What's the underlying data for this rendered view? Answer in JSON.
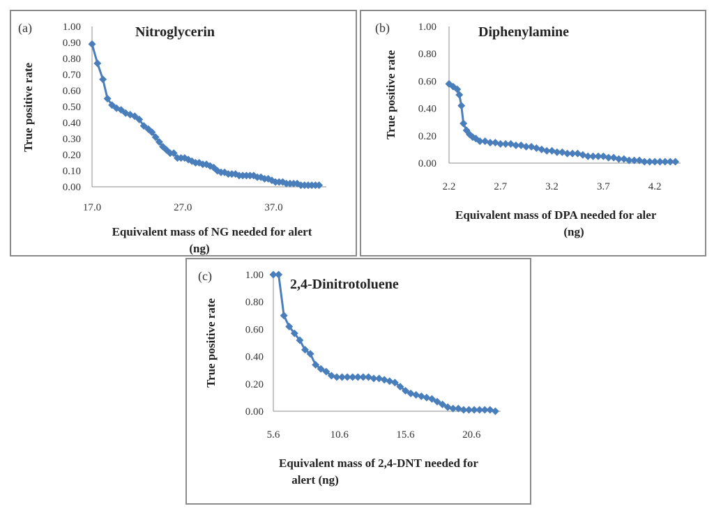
{
  "chart_data": [
    {
      "type": "line",
      "panel_label": "(a)",
      "title": "Nitroglycerin",
      "xlabel_line1": "Equivalent mass of NG needed for alert",
      "xlabel_line2": "(ng)",
      "ylabel": "True positive rate",
      "xlim": [
        17,
        42.8
      ],
      "ylim": [
        0,
        1
      ],
      "xticks": [
        "17.0",
        "27.0",
        "37.0"
      ],
      "yticks": [
        "0.00",
        "0.10",
        "0.20",
        "0.30",
        "0.40",
        "0.50",
        "0.60",
        "0.70",
        "0.80",
        "0.90",
        "1.00"
      ],
      "color": "#4a7ebb",
      "series": [
        {
          "name": "Nitroglycerin",
          "x": [
            17.0,
            17.6,
            18.2,
            18.7,
            19.2,
            19.7,
            20.2,
            20.7,
            21.2,
            21.7,
            22.2,
            22.7,
            23.2,
            23.6,
            24.0,
            24.4,
            24.8,
            25.2,
            25.6,
            26.0,
            26.4,
            26.8,
            27.2,
            27.6,
            28.0,
            28.4,
            28.8,
            29.2,
            29.6,
            30.0,
            30.4,
            30.8,
            31.2,
            31.6,
            32.0,
            32.4,
            32.8,
            33.2,
            33.6,
            34.0,
            34.4,
            34.8,
            35.2,
            35.6,
            36.0,
            36.4,
            36.8,
            37.2,
            37.6,
            38.0,
            38.4,
            38.8,
            39.2,
            39.6,
            40.0,
            40.4,
            40.8,
            41.2,
            41.6,
            42.0
          ],
          "y": [
            0.89,
            0.77,
            0.67,
            0.55,
            0.51,
            0.49,
            0.48,
            0.46,
            0.45,
            0.44,
            0.42,
            0.38,
            0.36,
            0.34,
            0.31,
            0.28,
            0.25,
            0.23,
            0.21,
            0.21,
            0.18,
            0.18,
            0.18,
            0.17,
            0.16,
            0.15,
            0.15,
            0.14,
            0.14,
            0.13,
            0.12,
            0.1,
            0.09,
            0.09,
            0.08,
            0.08,
            0.08,
            0.07,
            0.07,
            0.07,
            0.07,
            0.07,
            0.06,
            0.06,
            0.05,
            0.05,
            0.04,
            0.03,
            0.03,
            0.03,
            0.02,
            0.02,
            0.02,
            0.02,
            0.01,
            0.01,
            0.01,
            0.01,
            0.01,
            0.01
          ]
        }
      ]
    },
    {
      "type": "line",
      "panel_label": "(b)",
      "title": "Diphenylamine",
      "xlabel_line1": "Equivalent mass of DPA needed for aler",
      "xlabel_line2": "(ng)",
      "ylabel": "True positive rate",
      "xlim": [
        2.2,
        4.45
      ],
      "ylim": [
        0,
        1
      ],
      "xticks": [
        "2.2",
        "2.7",
        "3.2",
        "3.7",
        "4.2"
      ],
      "yticks": [
        "0.00",
        "0.20",
        "0.40",
        "0.60",
        "0.80",
        "1.00"
      ],
      "color": "#4a7ebb",
      "series": [
        {
          "name": "Diphenylamine",
          "x": [
            2.2,
            2.24,
            2.28,
            2.3,
            2.32,
            2.34,
            2.37,
            2.4,
            2.43,
            2.46,
            2.5,
            2.55,
            2.6,
            2.65,
            2.7,
            2.75,
            2.8,
            2.85,
            2.9,
            2.95,
            3.0,
            3.05,
            3.1,
            3.15,
            3.2,
            3.25,
            3.3,
            3.35,
            3.4,
            3.45,
            3.5,
            3.55,
            3.6,
            3.65,
            3.7,
            3.75,
            3.8,
            3.85,
            3.9,
            3.95,
            4.0,
            4.05,
            4.1,
            4.15,
            4.2,
            4.25,
            4.3,
            4.35,
            4.4
          ],
          "y": [
            0.58,
            0.56,
            0.54,
            0.5,
            0.42,
            0.29,
            0.24,
            0.21,
            0.19,
            0.18,
            0.16,
            0.16,
            0.15,
            0.15,
            0.14,
            0.14,
            0.14,
            0.13,
            0.13,
            0.12,
            0.12,
            0.11,
            0.1,
            0.09,
            0.09,
            0.08,
            0.08,
            0.07,
            0.07,
            0.07,
            0.06,
            0.05,
            0.05,
            0.05,
            0.05,
            0.04,
            0.04,
            0.03,
            0.03,
            0.02,
            0.02,
            0.02,
            0.01,
            0.01,
            0.01,
            0.01,
            0.01,
            0.01,
            0.01
          ]
        }
      ]
    },
    {
      "type": "line",
      "panel_label": "(c)",
      "title": "2,4-Dinitrotoluene",
      "xlabel_line1": "Equivalent mass of 2,4-DNT needed for",
      "xlabel_line2": "alert (ng)",
      "ylabel": "True positive rate",
      "xlim": [
        5.6,
        22.8
      ],
      "ylim": [
        0,
        1
      ],
      "xticks": [
        "5.6",
        "10.6",
        "15.6",
        "20.6"
      ],
      "yticks": [
        "0.00",
        "0.20",
        "0.40",
        "0.60",
        "0.80",
        "1.00"
      ],
      "color": "#4a7ebb",
      "series": [
        {
          "name": "2,4-Dinitrotoluene",
          "x": [
            5.6,
            6.0,
            6.4,
            6.8,
            7.2,
            7.6,
            8.0,
            8.4,
            8.8,
            9.2,
            9.6,
            10.0,
            10.4,
            10.8,
            11.2,
            11.6,
            12.0,
            12.4,
            12.8,
            13.2,
            13.6,
            14.0,
            14.4,
            14.8,
            15.2,
            15.6,
            16.0,
            16.4,
            16.8,
            17.2,
            17.6,
            18.0,
            18.4,
            18.8,
            19.2,
            19.6,
            20.0,
            20.4,
            20.8,
            21.2,
            21.6,
            22.0,
            22.4
          ],
          "y": [
            1.0,
            1.0,
            0.7,
            0.62,
            0.57,
            0.52,
            0.45,
            0.42,
            0.34,
            0.31,
            0.29,
            0.26,
            0.25,
            0.25,
            0.25,
            0.25,
            0.25,
            0.25,
            0.25,
            0.24,
            0.24,
            0.23,
            0.22,
            0.21,
            0.18,
            0.15,
            0.13,
            0.12,
            0.11,
            0.1,
            0.09,
            0.07,
            0.05,
            0.03,
            0.02,
            0.02,
            0.01,
            0.01,
            0.01,
            0.01,
            0.01,
            0.01,
            0.0
          ]
        }
      ]
    }
  ]
}
